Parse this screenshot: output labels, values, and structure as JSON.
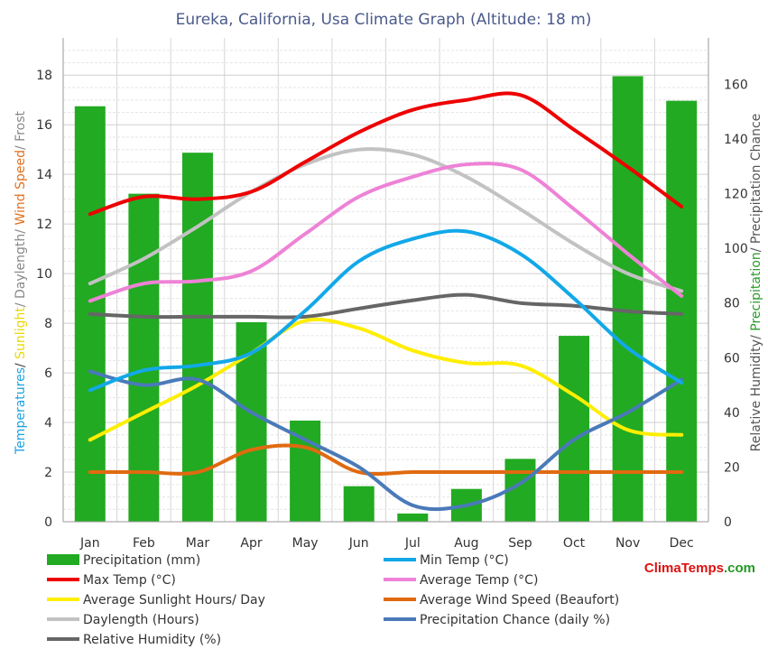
{
  "chart_data": {
    "type": "bar",
    "title": "Eureka, California, Usa Climate Graph (Altitude: 18 m)",
    "categories": [
      "Jan",
      "Feb",
      "Mar",
      "Apr",
      "May",
      "Jun",
      "Jul",
      "Aug",
      "Sep",
      "Oct",
      "Nov",
      "Dec"
    ],
    "left_axis": {
      "label_parts": [
        {
          "text": "Temperatures",
          "color": "#1fa2e0"
        },
        {
          "text": "/ ",
          "color": "#444444"
        },
        {
          "text": "Sunlight",
          "color": "#e8d800"
        },
        {
          "text": "/ Daylength/ ",
          "color": "#888888"
        },
        {
          "text": "Wind Speed",
          "color": "#e07020"
        },
        {
          "text": "/ Frost",
          "color": "#888888"
        }
      ],
      "ylim": [
        0,
        19.5
      ],
      "ticks": [
        0,
        2,
        4,
        6,
        8,
        10,
        12,
        14,
        16,
        18
      ]
    },
    "right_axis": {
      "label_parts": [
        {
          "text": "Relative Humidity",
          "color": "#555555"
        },
        {
          "text": "/ ",
          "color": "#555555"
        },
        {
          "text": "Precipitation",
          "color": "#2a9a2a"
        },
        {
          "text": "/ Precipitation Chance",
          "color": "#555555"
        }
      ],
      "ylim": [
        0,
        177
      ],
      "ticks": [
        0,
        20,
        40,
        60,
        80,
        100,
        120,
        140,
        160
      ]
    },
    "bars": {
      "name": "Precipitation (mm)",
      "axis": "right",
      "color": "#22aa22",
      "values": [
        152,
        120,
        135,
        73,
        37,
        13,
        3,
        12,
        23,
        68,
        163,
        154
      ]
    },
    "series": [
      {
        "name": "Min Temp (°C)",
        "axis": "left",
        "color": "#12a8e8",
        "values": [
          5.3,
          6.1,
          6.3,
          6.8,
          8.5,
          10.5,
          11.4,
          11.7,
          10.8,
          9.0,
          7.0,
          5.6
        ]
      },
      {
        "name": "Max Temp (°C)",
        "axis": "left",
        "color": "#ee0000",
        "values": [
          12.4,
          13.1,
          13.0,
          13.3,
          14.5,
          15.7,
          16.6,
          17.0,
          17.2,
          15.8,
          14.3,
          12.7
        ]
      },
      {
        "name": "Average Temp (°C)",
        "axis": "left",
        "color": "#ee82d6",
        "values": [
          8.9,
          9.6,
          9.7,
          10.1,
          11.6,
          13.1,
          13.9,
          14.4,
          14.2,
          12.6,
          10.8,
          9.1
        ]
      },
      {
        "name": "Average Sunlight Hours/ Day",
        "axis": "left",
        "color": "#ffee00",
        "values": [
          3.3,
          4.4,
          5.5,
          6.8,
          8.1,
          7.8,
          6.9,
          6.4,
          6.3,
          5.1,
          3.7,
          3.5
        ]
      },
      {
        "name": "Average Wind Speed (Beaufort)",
        "axis": "left",
        "color": "#e06a10",
        "values": [
          2.0,
          2.0,
          2.0,
          2.9,
          3.0,
          2.0,
          2.0,
          2.0,
          2.0,
          2.0,
          2.0,
          2.0
        ]
      },
      {
        "name": "Daylength (Hours)",
        "axis": "left",
        "color": "#c2c2c2",
        "values": [
          9.6,
          10.6,
          11.9,
          13.3,
          14.4,
          15.0,
          14.8,
          13.9,
          12.6,
          11.2,
          10.0,
          9.3
        ]
      },
      {
        "name": "Precipitation Chance (daily %)",
        "axis": "right",
        "color": "#4a7ab8",
        "values": [
          55,
          50,
          52,
          40,
          30,
          20,
          6,
          6,
          14,
          30,
          40,
          52
        ]
      },
      {
        "name": "Relative Humidity (%)",
        "axis": "right",
        "color": "#666666",
        "values": [
          76,
          75,
          75,
          75,
          75,
          78,
          81,
          83,
          80,
          79,
          77,
          76
        ]
      }
    ],
    "legend": {
      "placement": "bottom",
      "items": [
        {
          "label": "Precipitation (mm)",
          "color": "#22aa22",
          "shape": "box"
        },
        {
          "label": "Min Temp (°C)",
          "color": "#12a8e8",
          "shape": "line"
        },
        {
          "label": "Max Temp (°C)",
          "color": "#ee0000",
          "shape": "line"
        },
        {
          "label": "Average Temp (°C)",
          "color": "#ee82d6",
          "shape": "line"
        },
        {
          "label": "Average Sunlight Hours/ Day",
          "color": "#ffee00",
          "shape": "line"
        },
        {
          "label": "Average Wind Speed (Beaufort)",
          "color": "#e06a10",
          "shape": "line"
        },
        {
          "label": "Daylength (Hours)",
          "color": "#c2c2c2",
          "shape": "line"
        },
        {
          "label": "Precipitation Chance (daily %)",
          "color": "#4a7ab8",
          "shape": "line"
        },
        {
          "label": "Relative Humidity (%)",
          "color": "#666666",
          "shape": "line"
        }
      ]
    },
    "grid": true
  },
  "brand": {
    "text_a": "Clima",
    "text_b": "Temps",
    "text_c": ".com",
    "color_a": "#dd1111",
    "color_b": "#dd1111",
    "color_c": "#229922"
  }
}
